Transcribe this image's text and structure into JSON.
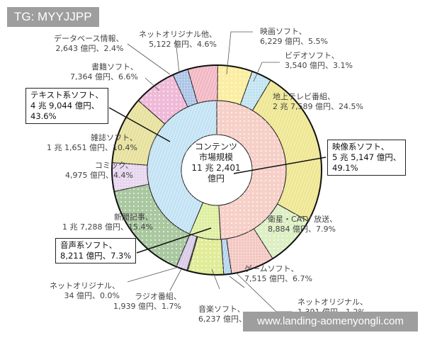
{
  "watermarks": {
    "top_left": "TG: MYYJJPP",
    "bottom_right": "www.landing-aomenyongli.com"
  },
  "chart_data": {
    "type": "pie",
    "donut": true,
    "center_label": [
      "コンテンツ",
      "市場規模",
      "11 兆 2,401",
      "億円"
    ],
    "inner_ring": [
      {
        "name": "映像系ソフト、",
        "amount": "5 兆 5,147 億円、",
        "percent": 49.1,
        "percent_label": "49.1%",
        "color": "#f6d0c8"
      },
      {
        "name": "音声系ソフト、",
        "amount": "8,211 億円、",
        "percent": 7.3,
        "percent_label": "7.3%",
        "color": "#dcee9c"
      },
      {
        "name": "テキスト系ソフト、",
        "amount": "4 兆 9,044 億円、",
        "percent": 43.6,
        "percent_label": "43.6%",
        "color": "#c2e2f4"
      }
    ],
    "outer_ring": [
      {
        "name": "映画ソフト、",
        "value_label": "6,229 億円、5.5%",
        "percent": 5.5,
        "color": "#fbeea2"
      },
      {
        "name": "ビデオソフト、",
        "value_label": "3,540 億円、3.1%",
        "percent": 3.1,
        "color": "#bfe2ef"
      },
      {
        "name": "地上テレビ番組、",
        "value_label": "2 兆 7,589 億円、24.5%",
        "percent": 24.5,
        "color": "#eee690"
      },
      {
        "name": "衛星・CATV 放送、",
        "value_label": "8,884 億円、7.9%",
        "percent": 7.9,
        "color": "#ddefc4"
      },
      {
        "name": "ゲームソフト、",
        "value_label": "7,515 億円、6.7%",
        "percent": 6.7,
        "color": "#f3c5c0"
      },
      {
        "name": "ネットオリジナル、",
        "value_label": "1,391 億円、1.2%",
        "percent": 1.2,
        "color": "#b5d3ef"
      },
      {
        "name": "音楽ソフト、",
        "value_label": "6,237 億円、5.5%",
        "percent": 5.5,
        "color": "#e0ec98"
      },
      {
        "name": "ネットオリジナル、",
        "value_label": "34 億円、0.0%",
        "percent": 0.0,
        "color": "#f0d0e0"
      },
      {
        "name": "ラジオ番組、",
        "value_label": "1,939 億円、1.7%",
        "percent": 1.7,
        "color": "#d8cae6"
      },
      {
        "name": "新聞記事、",
        "value_label": "1 兆 7,288 億円、15.4%",
        "percent": 15.4,
        "color": "#a9c8a0"
      },
      {
        "name": "コミック、",
        "value_label": "4,975 億円、4.4%",
        "percent": 4.4,
        "color": "#e6d4ee"
      },
      {
        "name": "雑誌ソフト、",
        "value_label": "1 兆 1,651 億円、10.4%",
        "percent": 10.4,
        "color": "#e6e09a"
      },
      {
        "name": "書籍ソフト、",
        "value_label": "7,364 億円、6.6%",
        "percent": 6.6,
        "color": "#efbad8"
      },
      {
        "name": "データベース情報、",
        "value_label": "2,643 億円、2.4%",
        "percent": 2.4,
        "color": "#a9c2e6"
      },
      {
        "name": "ネットオリジナル他、",
        "value_label": "5,122 億円、4.6%",
        "percent": 4.6,
        "color": "#f2b6c2"
      }
    ]
  }
}
